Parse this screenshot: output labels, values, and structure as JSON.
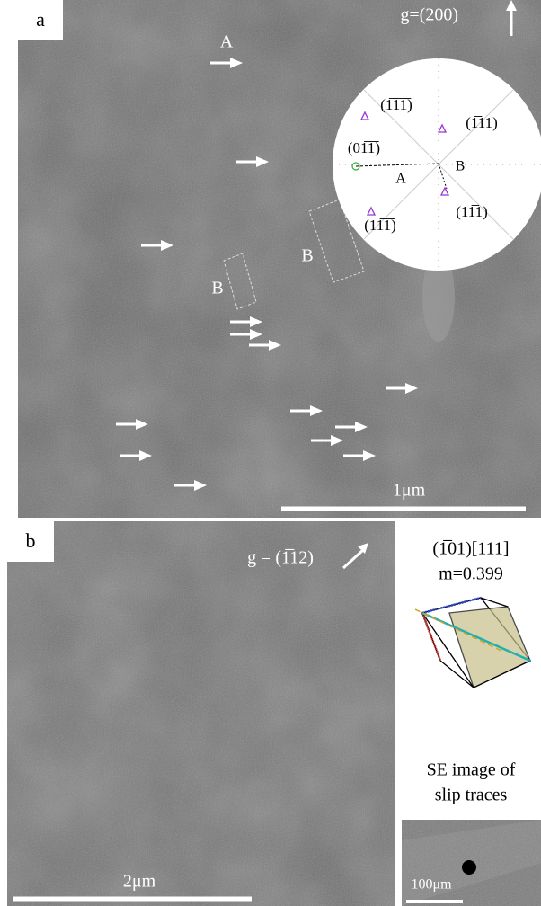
{
  "panel_a": {
    "label": "a",
    "arrow_label": "A",
    "g_vector": "g=(200)",
    "pole_figure": {
      "planes": [
        "(1̅1̅1̅)",
        "(1̅11)",
        "(01̅1̅)",
        "(11̅1)",
        "(11̅1̅)"
      ],
      "regions": [
        "A",
        "B"
      ]
    },
    "box_labels": [
      "B",
      "B"
    ],
    "scale_bar": "1μm"
  },
  "panel_b": {
    "label": "b",
    "g_vector": "g = (1̅12)",
    "slip_system": "(1̅01)[111]",
    "schmid_factor": "m=0.399",
    "se_caption": [
      "SE image of",
      "slip traces"
    ],
    "scale_bar": "2μm",
    "se_scale_bar": "100μm"
  }
}
